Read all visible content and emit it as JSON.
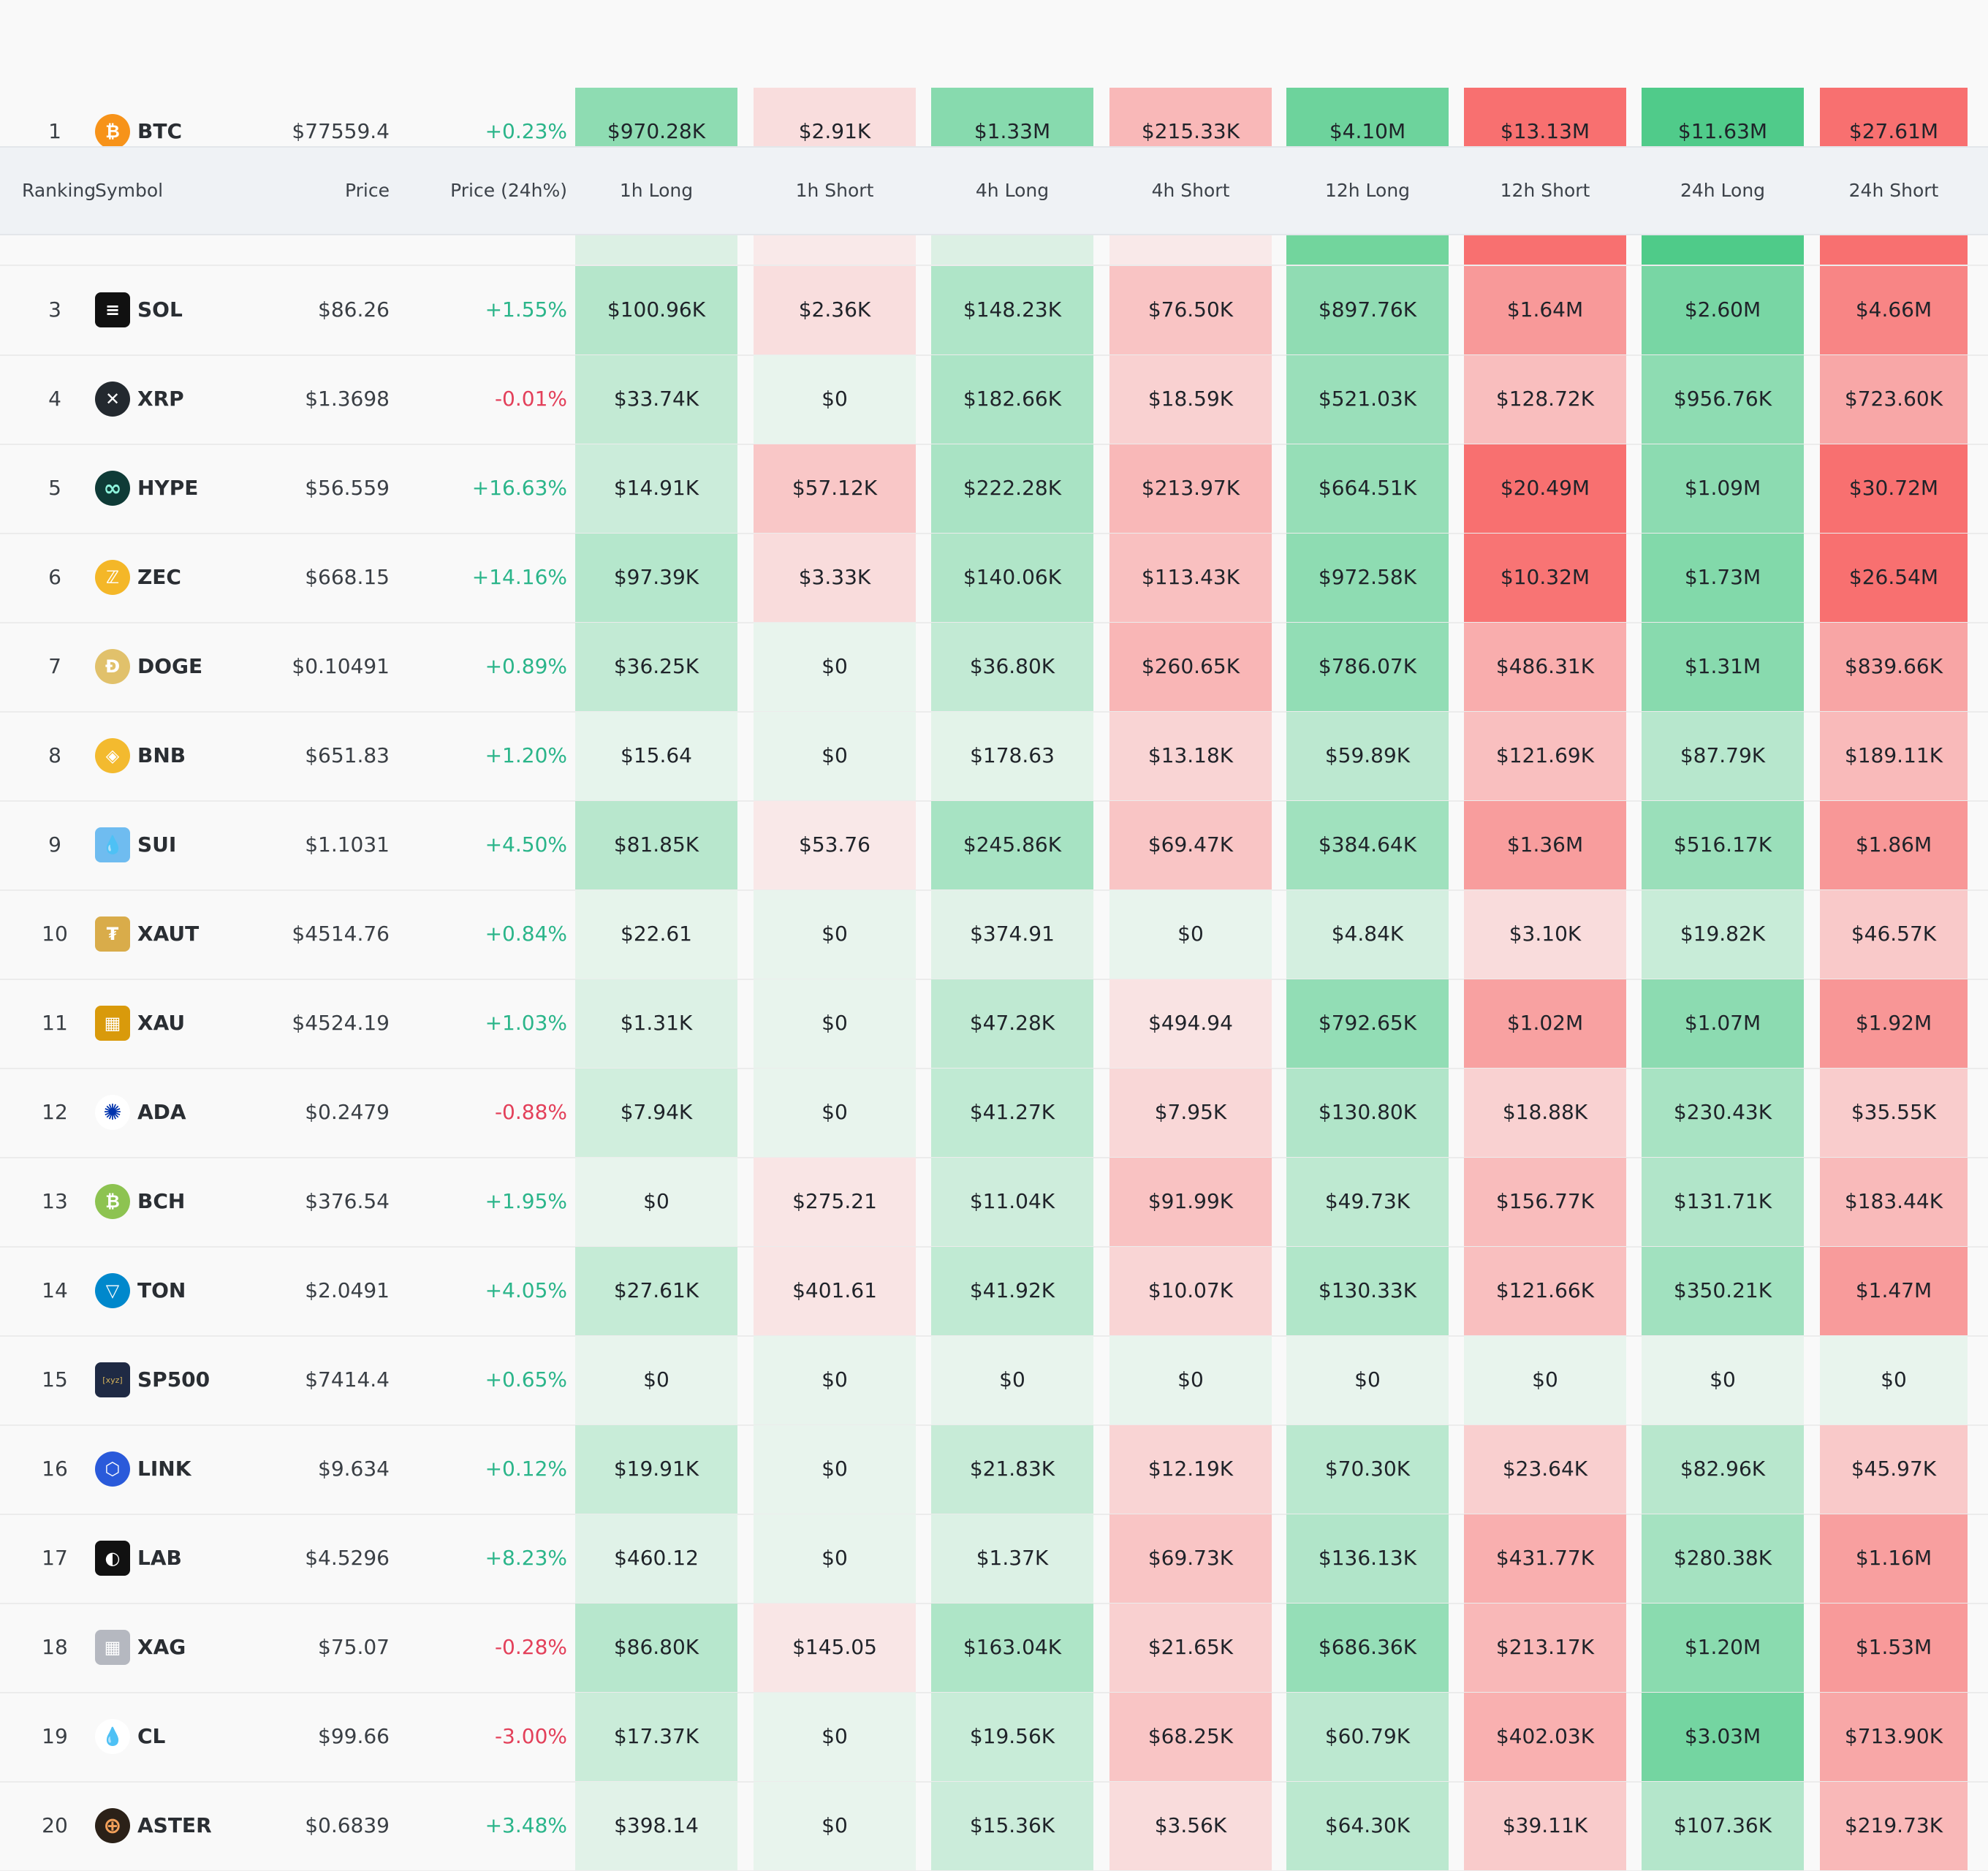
{
  "header": {
    "ranking": "Ranking",
    "symbol": "Symbol",
    "price": "Price",
    "change": "Price (24h%)",
    "h1_long": "1h Long",
    "h1_short": "1h Short",
    "h4_long": "4h Long",
    "h4_short": "4h Short",
    "h12_long": "12h Long",
    "h12_short": "12h Short",
    "h24_long": "24h Long",
    "h24_short": "24h Short"
  },
  "colors": {
    "long_light": "#e7f4ec",
    "short_light": "#f9e9e9",
    "long_strong": "#4fcb89",
    "short_strong": "#f87070",
    "positive_text": "#2bb58a",
    "negative_text": "#e3405a"
  },
  "rows": [
    {
      "rank": "1",
      "symbol": "BTC",
      "icon": "bitcoin-icon",
      "price": "$77559.4",
      "change": "+0.23%",
      "h1_long": "$970.28K",
      "h1_short": "$2.91K",
      "h4_long": "$1.33M",
      "h4_short": "$215.33K",
      "h12_long": "$4.10M",
      "h12_short": "$13.13M",
      "h24_long": "$11.63M",
      "h24_short": "$27.61M"
    },
    {
      "rank": "3",
      "symbol": "SOL",
      "icon": "solana-icon",
      "price": "$86.26",
      "change": "+1.55%",
      "h1_long": "$100.96K",
      "h1_short": "$2.36K",
      "h4_long": "$148.23K",
      "h4_short": "$76.50K",
      "h12_long": "$897.76K",
      "h12_short": "$1.64M",
      "h24_long": "$2.60M",
      "h24_short": "$4.66M"
    },
    {
      "rank": "4",
      "symbol": "XRP",
      "icon": "xrp-icon",
      "price": "$1.3698",
      "change": "-0.01%",
      "h1_long": "$33.74K",
      "h1_short": "$0",
      "h4_long": "$182.66K",
      "h4_short": "$18.59K",
      "h12_long": "$521.03K",
      "h12_short": "$128.72K",
      "h24_long": "$956.76K",
      "h24_short": "$723.60K"
    },
    {
      "rank": "5",
      "symbol": "HYPE",
      "icon": "hyperliquid-icon",
      "price": "$56.559",
      "change": "+16.63%",
      "h1_long": "$14.91K",
      "h1_short": "$57.12K",
      "h4_long": "$222.28K",
      "h4_short": "$213.97K",
      "h12_long": "$664.51K",
      "h12_short": "$20.49M",
      "h24_long": "$1.09M",
      "h24_short": "$30.72M"
    },
    {
      "rank": "6",
      "symbol": "ZEC",
      "icon": "zcash-icon",
      "price": "$668.15",
      "change": "+14.16%",
      "h1_long": "$97.39K",
      "h1_short": "$3.33K",
      "h4_long": "$140.06K",
      "h4_short": "$113.43K",
      "h12_long": "$972.58K",
      "h12_short": "$10.32M",
      "h24_long": "$1.73M",
      "h24_short": "$26.54M"
    },
    {
      "rank": "7",
      "symbol": "DOGE",
      "icon": "dogecoin-icon",
      "price": "$0.10491",
      "change": "+0.89%",
      "h1_long": "$36.25K",
      "h1_short": "$0",
      "h4_long": "$36.80K",
      "h4_short": "$260.65K",
      "h12_long": "$786.07K",
      "h12_short": "$486.31K",
      "h24_long": "$1.31M",
      "h24_short": "$839.66K"
    },
    {
      "rank": "8",
      "symbol": "BNB",
      "icon": "bnb-icon",
      "price": "$651.83",
      "change": "+1.20%",
      "h1_long": "$15.64",
      "h1_short": "$0",
      "h4_long": "$178.63",
      "h4_short": "$13.18K",
      "h12_long": "$59.89K",
      "h12_short": "$121.69K",
      "h24_long": "$87.79K",
      "h24_short": "$189.11K"
    },
    {
      "rank": "9",
      "symbol": "SUI",
      "icon": "sui-icon",
      "price": "$1.1031",
      "change": "+4.50%",
      "h1_long": "$81.85K",
      "h1_short": "$53.76",
      "h4_long": "$245.86K",
      "h4_short": "$69.47K",
      "h12_long": "$384.64K",
      "h12_short": "$1.36M",
      "h24_long": "$516.17K",
      "h24_short": "$1.86M"
    },
    {
      "rank": "10",
      "symbol": "XAUT",
      "icon": "tether-gold-icon",
      "price": "$4514.76",
      "change": "+0.84%",
      "h1_long": "$22.61",
      "h1_short": "$0",
      "h4_long": "$374.91",
      "h4_short": "$0",
      "h12_long": "$4.84K",
      "h12_short": "$3.10K",
      "h24_long": "$19.82K",
      "h24_short": "$46.57K"
    },
    {
      "rank": "11",
      "symbol": "XAU",
      "icon": "gold-bars-icon",
      "price": "$4524.19",
      "change": "+1.03%",
      "h1_long": "$1.31K",
      "h1_short": "$0",
      "h4_long": "$47.28K",
      "h4_short": "$494.94",
      "h12_long": "$792.65K",
      "h12_short": "$1.02M",
      "h24_long": "$1.07M",
      "h24_short": "$1.92M"
    },
    {
      "rank": "12",
      "symbol": "ADA",
      "icon": "cardano-icon",
      "price": "$0.2479",
      "change": "-0.88%",
      "h1_long": "$7.94K",
      "h1_short": "$0",
      "h4_long": "$41.27K",
      "h4_short": "$7.95K",
      "h12_long": "$130.80K",
      "h12_short": "$18.88K",
      "h24_long": "$230.43K",
      "h24_short": "$35.55K"
    },
    {
      "rank": "13",
      "symbol": "BCH",
      "icon": "bitcoin-cash-icon",
      "price": "$376.54",
      "change": "+1.95%",
      "h1_long": "$0",
      "h1_short": "$275.21",
      "h4_long": "$11.04K",
      "h4_short": "$91.99K",
      "h12_long": "$49.73K",
      "h12_short": "$156.77K",
      "h24_long": "$131.71K",
      "h24_short": "$183.44K"
    },
    {
      "rank": "14",
      "symbol": "TON",
      "icon": "toncoin-icon",
      "price": "$2.0491",
      "change": "+4.05%",
      "h1_long": "$27.61K",
      "h1_short": "$401.61",
      "h4_long": "$41.92K",
      "h4_short": "$10.07K",
      "h12_long": "$130.33K",
      "h12_short": "$121.66K",
      "h24_long": "$350.21K",
      "h24_short": "$1.47M"
    },
    {
      "rank": "15",
      "symbol": "SP500",
      "icon": "sp500-xyz-icon",
      "icon_text": "[xyz]",
      "price": "$7414.4",
      "change": "+0.65%",
      "h1_long": "$0",
      "h1_short": "$0",
      "h4_long": "$0",
      "h4_short": "$0",
      "h12_long": "$0",
      "h12_short": "$0",
      "h24_long": "$0",
      "h24_short": "$0"
    },
    {
      "rank": "16",
      "symbol": "LINK",
      "icon": "chainlink-icon",
      "price": "$9.634",
      "change": "+0.12%",
      "h1_long": "$19.91K",
      "h1_short": "$0",
      "h4_long": "$21.83K",
      "h4_short": "$12.19K",
      "h12_long": "$70.30K",
      "h12_short": "$23.64K",
      "h24_long": "$82.96K",
      "h24_short": "$45.97K"
    },
    {
      "rank": "17",
      "symbol": "LAB",
      "icon": "lab-icon",
      "price": "$4.5296",
      "change": "+8.23%",
      "h1_long": "$460.12",
      "h1_short": "$0",
      "h4_long": "$1.37K",
      "h4_short": "$69.73K",
      "h12_long": "$136.13K",
      "h12_short": "$431.77K",
      "h24_long": "$280.38K",
      "h24_short": "$1.16M"
    },
    {
      "rank": "18",
      "symbol": "XAG",
      "icon": "silver-bars-icon",
      "price": "$75.07",
      "change": "-0.28%",
      "h1_long": "$86.80K",
      "h1_short": "$145.05",
      "h4_long": "$163.04K",
      "h4_short": "$21.65K",
      "h12_long": "$686.36K",
      "h12_short": "$213.17K",
      "h24_long": "$1.20M",
      "h24_short": "$1.53M"
    },
    {
      "rank": "19",
      "symbol": "CL",
      "icon": "oil-drop-icon",
      "price": "$99.66",
      "change": "-3.00%",
      "h1_long": "$17.37K",
      "h1_short": "$0",
      "h4_long": "$19.56K",
      "h4_short": "$68.25K",
      "h12_long": "$60.79K",
      "h12_short": "$402.03K",
      "h24_long": "$3.03M",
      "h24_short": "$713.90K"
    },
    {
      "rank": "20",
      "symbol": "ASTER",
      "icon": "aster-icon",
      "price": "$0.6839",
      "change": "+3.48%",
      "h1_long": "$398.14",
      "h1_short": "$0",
      "h4_long": "$15.36K",
      "h4_short": "$3.56K",
      "h12_long": "$64.30K",
      "h12_short": "$39.11K",
      "h24_long": "$107.36K",
      "h24_short": "$219.73K"
    }
  ]
}
